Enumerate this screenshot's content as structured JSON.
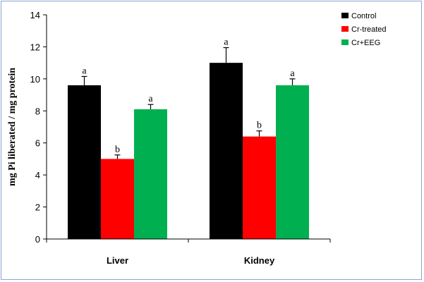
{
  "chart_data": {
    "type": "bar",
    "title": "",
    "xlabel": "",
    "ylabel": "mg Pi liberated / mg protein",
    "ylim": [
      0,
      14
    ],
    "yticks": [
      "0",
      "2",
      "4",
      "6",
      "8",
      "10",
      "12",
      "14"
    ],
    "categories": [
      "Liver",
      "Kidney"
    ],
    "legend_position": "top-right",
    "grid": false,
    "series": [
      {
        "name": "Control",
        "color": "#000000",
        "values": [
          9.6,
          11.0
        ],
        "errors": [
          0.55,
          0.95
        ],
        "labels": [
          "a",
          "a"
        ]
      },
      {
        "name": "Cr-treated",
        "color": "#ff0000",
        "values": [
          5.0,
          6.4
        ],
        "errors": [
          0.25,
          0.35
        ],
        "labels": [
          "b",
          "b"
        ]
      },
      {
        "name": "Cr+EEG",
        "color": "#00b050",
        "values": [
          8.1,
          9.6
        ],
        "errors": [
          0.3,
          0.4
        ],
        "labels": [
          "a",
          "a"
        ]
      }
    ]
  }
}
